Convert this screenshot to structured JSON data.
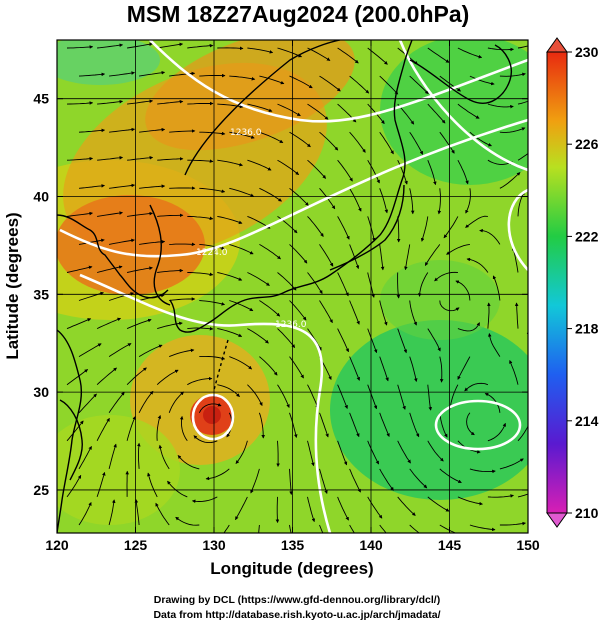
{
  "title": "MSM 18Z27Aug2024 (200.0hPa)",
  "map": {
    "lon_range": [
      120,
      150
    ],
    "lat_range": [
      22.8,
      48
    ],
    "grid_lon": [
      125,
      130,
      135,
      140,
      145
    ],
    "grid_lat": [
      25,
      30,
      35,
      40,
      45
    ],
    "x_ticks": [
      "120",
      "125",
      "130",
      "135",
      "140",
      "145",
      "150"
    ],
    "y_ticks": [
      "25",
      "30",
      "35",
      "40",
      "45"
    ],
    "xlabel": "Longitude (degrees)",
    "ylabel": "Latitude  (degrees)"
  },
  "colorbar": {
    "ticks": [
      "230",
      "226",
      "222",
      "218",
      "214",
      "210"
    ],
    "stops": [
      {
        "v": 210,
        "color": "#d81fb4"
      },
      {
        "v": 213,
        "color": "#5a1ad0"
      },
      {
        "v": 216,
        "color": "#1f5ff0"
      },
      {
        "v": 219,
        "color": "#12c8d8"
      },
      {
        "v": 222,
        "color": "#22cc44"
      },
      {
        "v": 225,
        "color": "#b8e020"
      },
      {
        "v": 227,
        "color": "#f0a010"
      },
      {
        "v": 230,
        "color": "#e82a10"
      }
    ]
  },
  "contour_labels": [
    "1236.0",
    "1224.0",
    "1236.0"
  ],
  "credits": {
    "line1": "Drawing by DCL (https://www.gfd-dennou.org/library/dcl/)",
    "line2": "Data from http://database.rish.kyoto-u.ac.jp/arch/jmadata/"
  }
}
